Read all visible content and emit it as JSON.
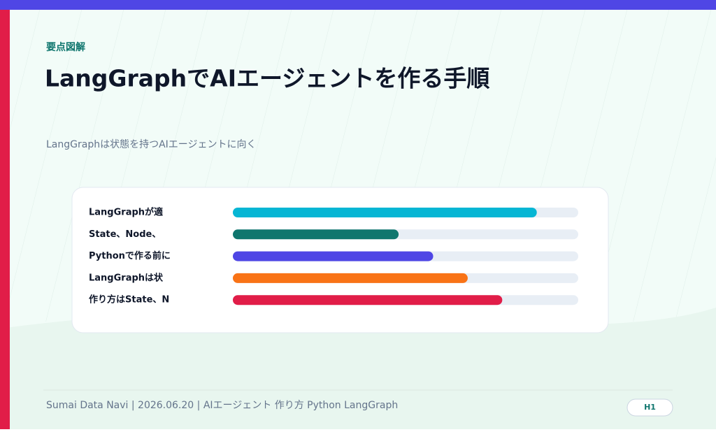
{
  "kicker": "要点図解",
  "subtitle": "LangGraphは状態を持つAIエージェントに向く",
  "footer": "Sumai Data Navi | 2026.06.20 | AIエージェント 作り方 Python LangGraph",
  "badge": "H1",
  "chart_data": {
    "type": "bar",
    "orientation": "horizontal",
    "title": "LangGraphでAIエージェントを作る手順",
    "categories": [
      "LangGraphが適",
      "State、Node、",
      "Pythonで作る前に",
      "LangGraphは状",
      "作り方はState、N"
    ],
    "values": [
      88,
      48,
      58,
      68,
      78
    ],
    "colors": [
      "#06b6d4",
      "#0f766e",
      "#4f46e5",
      "#f97316",
      "#e11d48"
    ],
    "xlim": [
      0,
      100
    ]
  }
}
